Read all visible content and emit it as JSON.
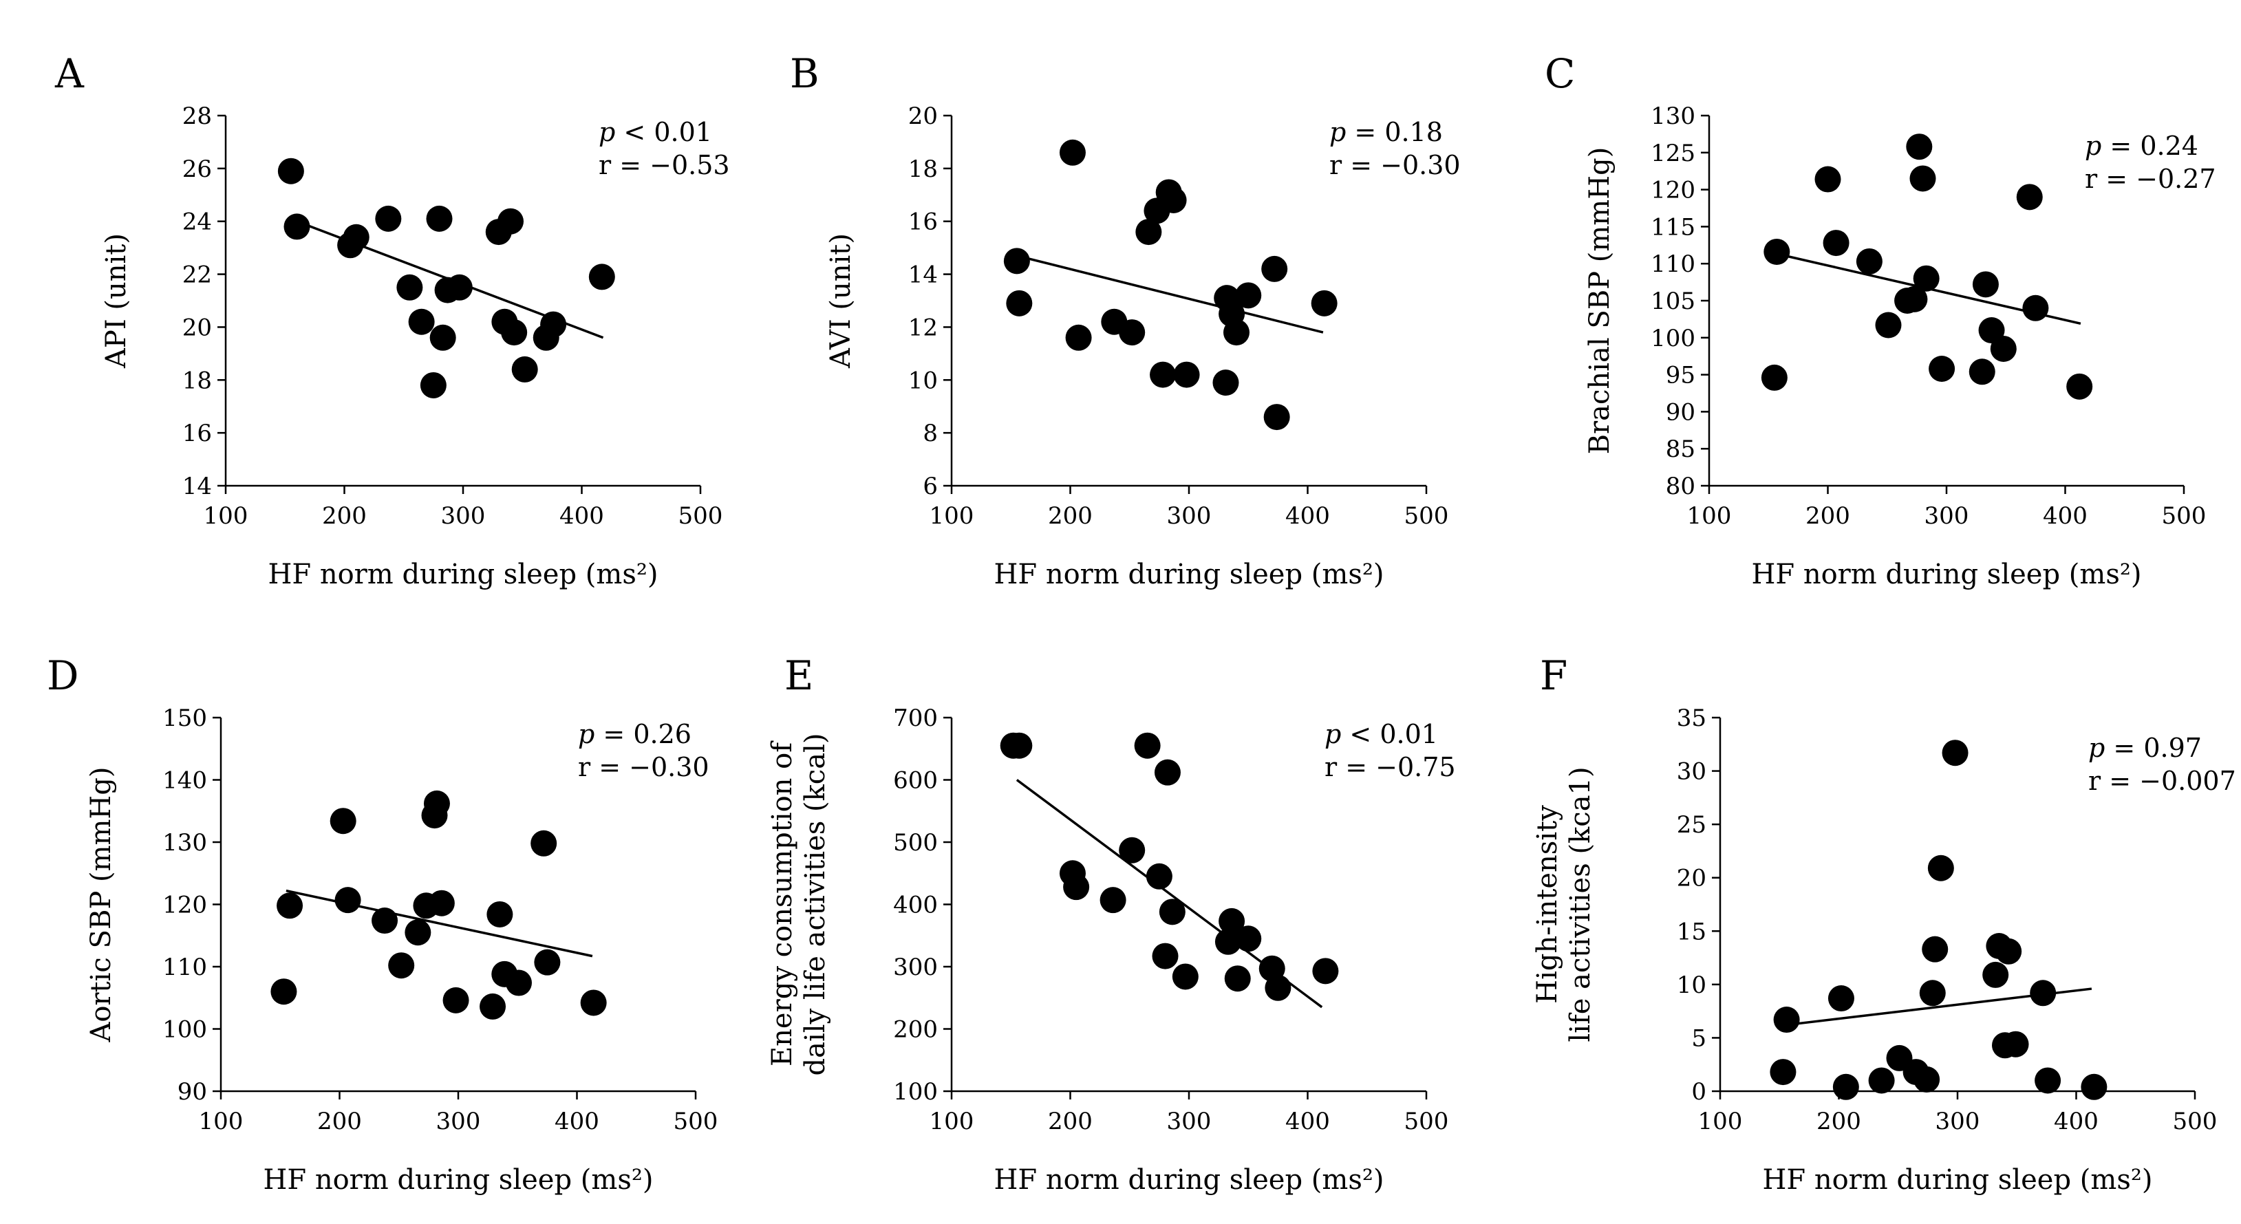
{
  "chart_data": [
    {
      "type": "scatter",
      "panel": "A",
      "xlabel": "HF norm during sleep (ms²)",
      "ylabel_lines": [
        "API (unit)"
      ],
      "xlim": [
        100,
        500
      ],
      "xticks": [
        100,
        200,
        300,
        400,
        500
      ],
      "ylim": [
        14,
        28
      ],
      "yticks": [
        14,
        16,
        18,
        20,
        22,
        24,
        26,
        28
      ],
      "stats": {
        "p_symbol": "p",
        "p_text": " < 0.01",
        "r_text": "r = −0.53"
      },
      "trendline": [
        [
          160,
          24.0
        ],
        [
          418,
          19.6
        ]
      ],
      "points": [
        [
          155,
          25.9
        ],
        [
          160,
          23.8
        ],
        [
          205,
          23.1
        ],
        [
          210,
          23.4
        ],
        [
          237,
          24.1
        ],
        [
          255,
          21.5
        ],
        [
          265,
          20.2
        ],
        [
          275,
          17.8
        ],
        [
          280,
          24.1
        ],
        [
          283,
          19.6
        ],
        [
          287,
          21.4
        ],
        [
          297,
          21.5
        ],
        [
          330,
          23.6
        ],
        [
          335,
          20.2
        ],
        [
          340,
          24.0
        ],
        [
          343,
          19.8
        ],
        [
          352,
          18.4
        ],
        [
          370,
          19.6
        ],
        [
          376,
          20.1
        ],
        [
          417,
          21.9
        ]
      ]
    },
    {
      "type": "scatter",
      "panel": "B",
      "xlabel": "HF norm during sleep (ms²)",
      "ylabel_lines": [
        "AVI (unit)"
      ],
      "xlim": [
        100,
        500
      ],
      "xticks": [
        100,
        200,
        300,
        400,
        500
      ],
      "ylim": [
        6,
        20
      ],
      "yticks": [
        6,
        8,
        10,
        12,
        14,
        16,
        18,
        20
      ],
      "stats": {
        "p_symbol": "p",
        "p_text": " = 0.18",
        "r_text": "r = −0.30"
      },
      "trendline": [
        [
          155,
          14.7
        ],
        [
          413,
          11.8
        ]
      ],
      "points": [
        [
          155,
          14.5
        ],
        [
          157,
          12.9
        ],
        [
          202,
          18.6
        ],
        [
          207,
          11.6
        ],
        [
          237,
          12.2
        ],
        [
          252,
          11.8
        ],
        [
          266,
          15.6
        ],
        [
          273,
          16.4
        ],
        [
          278,
          10.2
        ],
        [
          283,
          17.1
        ],
        [
          287,
          16.8
        ],
        [
          298,
          10.2
        ],
        [
          331,
          9.9
        ],
        [
          332,
          13.1
        ],
        [
          336,
          12.5
        ],
        [
          340,
          11.8
        ],
        [
          350,
          13.2
        ],
        [
          372,
          14.2
        ],
        [
          374,
          8.6
        ],
        [
          414,
          12.9
        ]
      ]
    },
    {
      "type": "scatter",
      "panel": "C",
      "xlabel": "HF norm during sleep (ms²)",
      "ylabel_lines": [
        "Brachial SBP (mmHg)"
      ],
      "xlim": [
        100,
        500
      ],
      "xticks": [
        100,
        200,
        300,
        400,
        500
      ],
      "ylim": [
        80,
        130
      ],
      "yticks": [
        80,
        85,
        90,
        95,
        100,
        105,
        110,
        115,
        120,
        125,
        130
      ],
      "stats": {
        "p_symbol": "p",
        "p_text": " = 0.24",
        "r_text": "r = −0.27"
      },
      "trendline": [
        [
          155,
          111.4
        ],
        [
          413,
          101.9
        ]
      ],
      "points": [
        [
          155,
          94.6
        ],
        [
          157,
          111.6
        ],
        [
          200,
          121.4
        ],
        [
          207,
          112.8
        ],
        [
          235,
          110.3
        ],
        [
          251,
          101.7
        ],
        [
          267,
          105.0
        ],
        [
          273,
          105.2
        ],
        [
          277,
          125.8
        ],
        [
          280,
          121.5
        ],
        [
          283,
          108.0
        ],
        [
          296,
          95.8
        ],
        [
          330,
          95.4
        ],
        [
          333,
          107.2
        ],
        [
          338,
          101.0
        ],
        [
          348,
          98.5
        ],
        [
          370,
          119.0
        ],
        [
          375,
          104.0
        ],
        [
          412,
          93.4
        ]
      ]
    },
    {
      "type": "scatter",
      "panel": "D",
      "xlabel": "HF norm during sleep (ms²)",
      "ylabel_lines": [
        "Aortic SBP (mmHg)"
      ],
      "xlim": [
        100,
        500
      ],
      "xticks": [
        100,
        200,
        300,
        400,
        500
      ],
      "ylim": [
        90,
        150
      ],
      "yticks": [
        90,
        100,
        110,
        120,
        130,
        140,
        150
      ],
      "stats": {
        "p_symbol": "p",
        "p_text": " = 0.26",
        "r_text": "r = −0.30"
      },
      "trendline": [
        [
          155,
          122.2
        ],
        [
          413,
          111.7
        ]
      ],
      "points": [
        [
          153,
          106.0
        ],
        [
          158,
          119.8
        ],
        [
          203,
          133.4
        ],
        [
          207,
          120.7
        ],
        [
          238,
          117.4
        ],
        [
          252,
          110.2
        ],
        [
          266,
          115.5
        ],
        [
          273,
          119.8
        ],
        [
          280,
          134.3
        ],
        [
          282,
          136.2
        ],
        [
          286,
          120.2
        ],
        [
          298,
          104.6
        ],
        [
          329,
          103.6
        ],
        [
          335,
          118.4
        ],
        [
          339,
          108.8
        ],
        [
          351,
          107.4
        ],
        [
          372,
          129.8
        ],
        [
          375,
          110.7
        ],
        [
          414,
          104.2
        ]
      ]
    },
    {
      "type": "scatter",
      "panel": "E",
      "xlabel": "HF norm during sleep (ms²)",
      "ylabel_lines": [
        "Energy consumption of",
        "daily life activities (kcal)"
      ],
      "xlim": [
        100,
        500
      ],
      "xticks": [
        100,
        200,
        300,
        400,
        500
      ],
      "ylim": [
        100,
        700
      ],
      "yticks": [
        100,
        200,
        300,
        400,
        500,
        600,
        700
      ],
      "stats": {
        "p_symbol": "p",
        "p_text": " < 0.01",
        "r_text": "r = −0.75"
      },
      "trendline": [
        [
          155,
          600
        ],
        [
          412,
          235
        ]
      ],
      "points": [
        [
          152,
          655
        ],
        [
          157,
          655
        ],
        [
          202,
          450
        ],
        [
          205,
          428
        ],
        [
          236,
          407
        ],
        [
          252,
          487
        ],
        [
          265,
          655
        ],
        [
          275,
          445
        ],
        [
          280,
          317
        ],
        [
          282,
          612
        ],
        [
          286,
          388
        ],
        [
          297,
          284
        ],
        [
          333,
          340
        ],
        [
          336,
          373
        ],
        [
          341,
          281
        ],
        [
          350,
          345
        ],
        [
          370,
          297
        ],
        [
          375,
          266
        ],
        [
          415,
          293
        ]
      ]
    },
    {
      "type": "scatter",
      "panel": "F",
      "xlabel": "HF norm during sleep (ms²)",
      "ylabel_lines": [
        "High-intensity",
        "life activities (kca1)"
      ],
      "xlim": [
        100,
        500
      ],
      "xticks": [
        100,
        200,
        300,
        400,
        500
      ],
      "ylim": [
        0,
        35
      ],
      "yticks": [
        0,
        5,
        10,
        15,
        20,
        25,
        30,
        35
      ],
      "stats": {
        "p_symbol": "p",
        "p_text": " = 0.97",
        "r_text": "r = −0.007"
      },
      "trendline": [
        [
          155,
          6.2
        ],
        [
          413,
          9.6
        ]
      ],
      "points": [
        [
          153,
          1.8
        ],
        [
          156,
          6.7
        ],
        [
          202,
          8.7
        ],
        [
          206,
          0.4
        ],
        [
          236,
          1.0
        ],
        [
          251,
          3.1
        ],
        [
          265,
          1.8
        ],
        [
          274,
          1.1
        ],
        [
          279,
          9.2
        ],
        [
          281,
          13.3
        ],
        [
          286,
          20.9
        ],
        [
          298,
          31.7
        ],
        [
          332,
          10.9
        ],
        [
          335,
          13.6
        ],
        [
          340,
          4.3
        ],
        [
          343,
          13.1
        ],
        [
          349,
          4.4
        ],
        [
          372,
          9.2
        ],
        [
          376,
          1.0
        ],
        [
          415,
          0.4
        ]
      ]
    }
  ]
}
